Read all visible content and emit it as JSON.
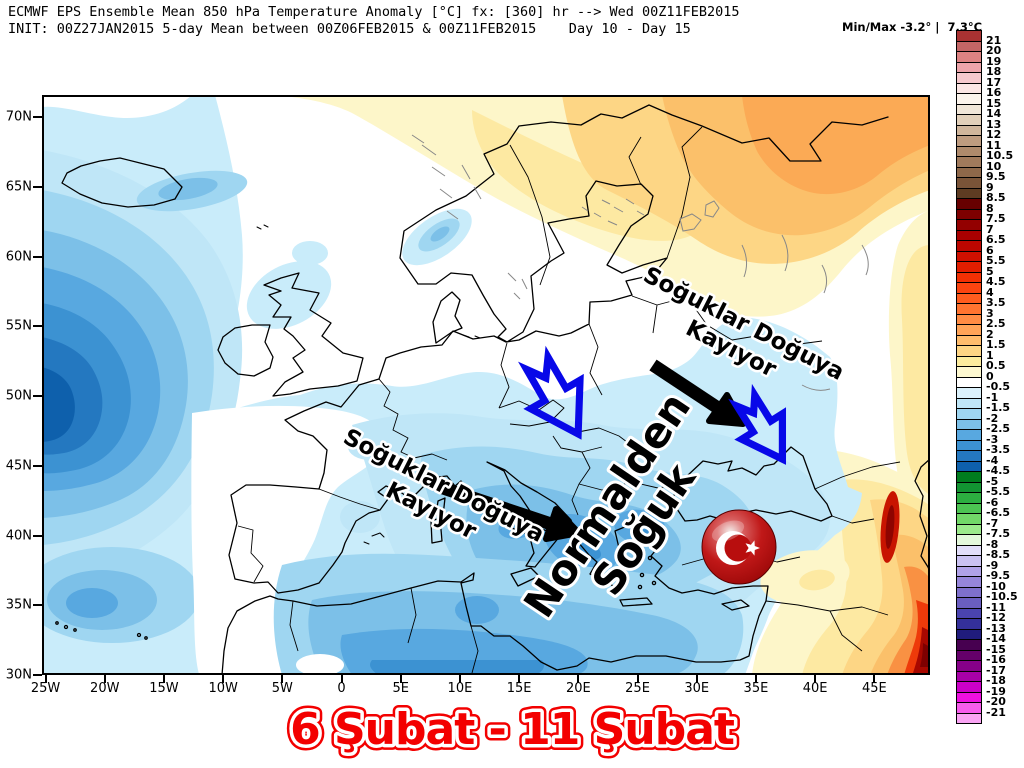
{
  "header": {
    "line1": "ECMWF EPS Ensemble Mean 850 hPa Temperature Anomaly [°C] fx: [360] hr --> Wed 00Z11FEB2015",
    "line2": "INIT: 00Z27JAN2015 5-day Mean between 00Z06FEB2015 & 00Z11FEB2015    Day 10 - Day 15",
    "minmax_label": "Min/Max -3.2° |  7.3°C"
  },
  "axes": {
    "lat_labels": [
      "70N",
      "65N",
      "60N",
      "55N",
      "50N",
      "45N",
      "40N",
      "35N",
      "30N"
    ],
    "lon_labels": [
      "25W",
      "20W",
      "15W",
      "10W",
      "5W",
      "0",
      "5E",
      "10E",
      "15E",
      "20E",
      "25E",
      "30E",
      "35E",
      "40E",
      "45E"
    ]
  },
  "annotations": {
    "cold_shift": {
      "line1": "Soğuklar Doğuya",
      "line2": "Kayıyor"
    },
    "colder_than_normal": {
      "line1": "Normalden",
      "line2": "Soğuk"
    }
  },
  "caption": "6 Şubat - 11 Şubat",
  "colors": {
    "annotation_arrow_blue": "#0808e8",
    "annotation_text_black": "#000000",
    "caption_red": "#f30000",
    "flag_red": "#c00000"
  },
  "colorbar": {
    "labels": [
      "21",
      "20",
      "19",
      "18",
      "17",
      "16",
      "15",
      "14",
      "13",
      "12",
      "11",
      "10.5",
      "10",
      "9.5",
      "9",
      "8.5",
      "8",
      "7.5",
      "7",
      "6.5",
      "6",
      "5.5",
      "5",
      "4.5",
      "4",
      "3.5",
      "3",
      "2.5",
      "2",
      "1.5",
      "1",
      "0.5",
      "0",
      "-0.5",
      "-1",
      "-1.5",
      "-2",
      "-2.5",
      "-3",
      "-3.5",
      "-4",
      "-4.5",
      "-5",
      "-5.5",
      "-6",
      "-6.5",
      "-7",
      "-7.5",
      "-8",
      "-8.5",
      "-9",
      "-9.5",
      "-10",
      "-10.5",
      "-11",
      "-12",
      "-13",
      "-14",
      "-15",
      "-16",
      "-17",
      "-18",
      "-19",
      "-20",
      "-21"
    ],
    "colors": [
      "#a83232",
      "#c46666",
      "#dd8282",
      "#eda4aa",
      "#f6c9cd",
      "#fbe6e4",
      "#fbf4ec",
      "#f0e6d8",
      "#e2d0ba",
      "#d0b69c",
      "#be9c80",
      "#ae8a6c",
      "#a07a5c",
      "#8e684a",
      "#7a5438",
      "#5e3c22",
      "#670000",
      "#7d0000",
      "#930000",
      "#a80000",
      "#bc0600",
      "#d01000",
      "#e21e00",
      "#f23004",
      "#fb4410",
      "#ff5c1e",
      "#ff7430",
      "#ff8c44",
      "#ffa458",
      "#ffbc6c",
      "#fed584",
      "#fcec9e",
      "#fdf8d0",
      "#ffffff",
      "#dbf1fb",
      "#bfe6f7",
      "#9fd6f1",
      "#7cc0e8",
      "#58a8e0",
      "#3c92d2",
      "#2478c0",
      "#0e60ac",
      "#007c1e",
      "#129432",
      "#2cae40",
      "#4cc452",
      "#72d868",
      "#9cea8c",
      "#e4f8dc",
      "#e2defa",
      "#cac2f2",
      "#b0a2e8",
      "#9686da",
      "#7e70cc",
      "#6a5ec0",
      "#4a44b0",
      "#34309a",
      "#201c7c",
      "#470050",
      "#65006a",
      "#860088",
      "#a800a8",
      "#cc00c8",
      "#ee10e0",
      "#f75cec",
      "#faa4f4"
    ]
  },
  "map_data": {
    "type": "filled-contour-map",
    "variable": "850 hPa temperature anomaly (°C)",
    "model": "ECMWF EPS ensemble mean",
    "forecast_hour": 360,
    "valid": "Wed 00Z11FEB2015",
    "init": "00Z27JAN2015",
    "period": "Day 10 - Day 15",
    "min_anomaly": -3.2,
    "max_anomaly": 7.3,
    "lon_range": [
      "25W",
      "45E"
    ],
    "lat_range": [
      "30N",
      "70N"
    ],
    "cold_regions": "Atlantic west of Iberia, central/southern Europe, Balkans, Italy, NW Turkey (-1 to -4)",
    "warm_regions": "Northern Scandinavia and NW Russia (+1 to +3), eastern Turkey / Middle East up to +7"
  }
}
